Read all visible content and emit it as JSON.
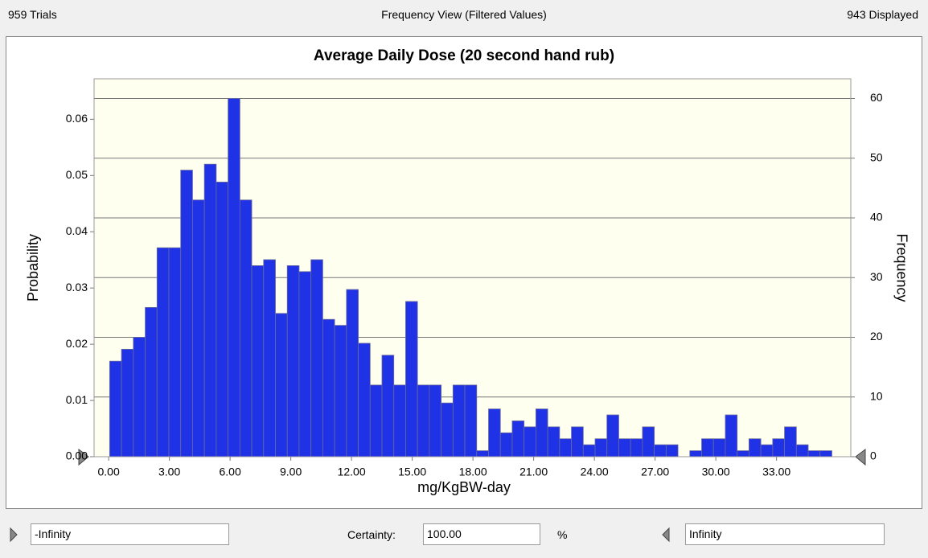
{
  "header": {
    "trials": "959 Trials",
    "view": "Frequency View (Filtered Values)",
    "displayed": "943 Displayed"
  },
  "chart_data": {
    "type": "histogram",
    "title": "Average Daily Dose (20 second hand rub)",
    "x_label": "mg/KgBW-day",
    "y_label": "Probability",
    "y2_label": "Frequency",
    "bins": [
      0.05,
      0.635,
      1.22,
      1.805,
      2.39,
      2.975,
      3.56,
      4.145,
      4.73,
      5.315,
      5.9,
      6.485,
      7.07,
      7.655,
      8.24,
      8.825,
      9.41,
      9.995,
      10.58,
      11.165,
      11.75,
      12.335,
      12.92,
      13.505,
      14.09,
      14.675,
      15.26,
      15.845,
      16.43,
      17.015,
      17.6,
      18.185,
      18.77,
      19.355,
      19.94,
      20.525,
      21.11,
      21.695,
      22.28,
      22.865,
      23.45,
      24.035,
      24.62,
      25.205,
      25.79,
      26.375,
      26.96,
      27.545,
      28.13,
      28.715,
      29.3,
      29.885,
      30.47,
      31.055,
      31.64,
      32.225,
      32.81,
      33.395,
      33.98,
      34.565,
      35.15,
      35.735
    ],
    "series": [
      {
        "axis": "y2",
        "color": "#1f32e6",
        "values": [
          16,
          18,
          20,
          25,
          35,
          35,
          48,
          43,
          49,
          46,
          60,
          43,
          32,
          33,
          24,
          32,
          31,
          33,
          23,
          22,
          28,
          19,
          12,
          17,
          12,
          26,
          12,
          12,
          9,
          12,
          12,
          1,
          8,
          4,
          6,
          5,
          8,
          5,
          3,
          5,
          2,
          3,
          7,
          3,
          3,
          5,
          2,
          2,
          0,
          1,
          3,
          3,
          7,
          1,
          3,
          2,
          3,
          5,
          2,
          1,
          1
        ]
      }
    ],
    "xlim": [
      -0.72,
      36.67
    ],
    "xticks": [
      {
        "value": 0,
        "label": "0.00"
      },
      {
        "value": 3,
        "label": "3.00"
      },
      {
        "value": 6,
        "label": "6.00"
      },
      {
        "value": 9,
        "label": "9.00"
      },
      {
        "value": 12,
        "label": "12.00"
      },
      {
        "value": 15,
        "label": "15.00"
      },
      {
        "value": 18,
        "label": "18.00"
      },
      {
        "value": 21,
        "label": "21.00"
      },
      {
        "value": 24,
        "label": "24.00"
      },
      {
        "value": 27,
        "label": "27.00"
      },
      {
        "value": 30,
        "label": "30.00"
      },
      {
        "value": 33,
        "label": "33.00"
      }
    ],
    "ylim": [
      0,
      0.0672
    ],
    "yticks": [
      {
        "value": 0,
        "label": "0.00"
      },
      0.01,
      0.02,
      0.03,
      0.04,
      0.05,
      0.06
    ],
    "y2lim": [
      0,
      63.3
    ],
    "y2ticks": [
      0,
      10,
      20,
      30,
      40,
      50,
      60
    ],
    "grid": true
  },
  "footer": {
    "lower": "-Infinity",
    "certainty_label": "Certainty:",
    "certainty": "100.00",
    "percent": "%",
    "upper": "Infinity"
  }
}
